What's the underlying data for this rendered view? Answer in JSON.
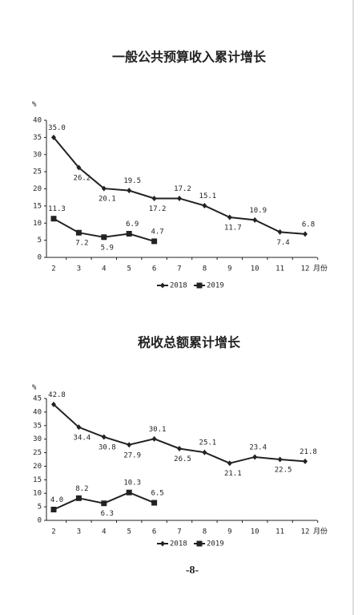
{
  "chart_data": [
    {
      "type": "line",
      "title": "一般公共预算收入累计增长",
      "y_label": "%",
      "x_label": "月份",
      "categories": [
        "2",
        "3",
        "4",
        "5",
        "6",
        "7",
        "8",
        "9",
        "10",
        "11",
        "12"
      ],
      "ylim": [
        0,
        40
      ],
      "yticks": [
        0,
        5,
        10,
        15,
        20,
        25,
        30,
        35,
        40
      ],
      "series": [
        {
          "name": "2018",
          "color": "#222222",
          "marker": "diamond",
          "values": [
            35.0,
            26.2,
            20.1,
            19.5,
            17.2,
            17.2,
            15.1,
            11.7,
            10.9,
            7.4,
            6.8
          ],
          "value_labels": [
            "35.0",
            "26.2",
            "20.1",
            "19.5",
            "17.2",
            "17.2",
            "15.1",
            "11.7",
            "10.9",
            "7.4",
            "6.8"
          ]
        },
        {
          "name": "2019",
          "color": "#222222",
          "marker": "square",
          "values": [
            11.3,
            7.2,
            5.9,
            6.9,
            4.7,
            null,
            null,
            null,
            null,
            null,
            null
          ],
          "value_labels": [
            "11.3",
            "7.2",
            "5.9",
            "6.9",
            "4.7",
            null,
            null,
            null,
            null,
            null,
            null
          ]
        }
      ]
    },
    {
      "type": "line",
      "title": "税收总额累计增长",
      "y_label": "%",
      "x_label": "月份",
      "categories": [
        "2",
        "3",
        "4",
        "5",
        "6",
        "7",
        "8",
        "9",
        "10",
        "11",
        "12"
      ],
      "ylim": [
        0,
        45
      ],
      "yticks": [
        0,
        5,
        10,
        15,
        20,
        25,
        30,
        35,
        40,
        45
      ],
      "series": [
        {
          "name": "2018",
          "color": "#222222",
          "marker": "diamond",
          "values": [
            42.8,
            34.4,
            30.8,
            27.9,
            30.1,
            26.5,
            25.1,
            21.1,
            23.4,
            22.5,
            21.8
          ]
        },
        {
          "name": "2019",
          "color": "#222222",
          "marker": "square",
          "values": [
            4.0,
            8.2,
            6.3,
            10.3,
            6.5,
            null,
            null,
            null,
            null,
            null,
            null
          ],
          "value_labels": [
            "4.0",
            "8.2",
            "6.3",
            "10.3",
            "6.5",
            null,
            null,
            null,
            null,
            null,
            null
          ]
        }
      ]
    }
  ],
  "page_number": "-8-"
}
